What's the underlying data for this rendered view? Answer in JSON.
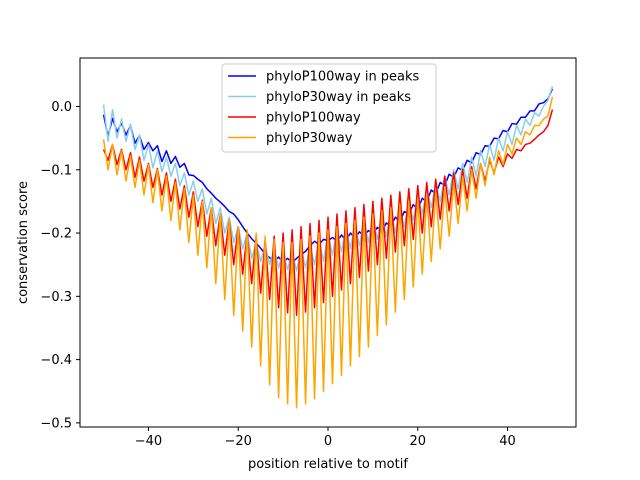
{
  "chart_data": {
    "type": "line",
    "title": "",
    "xlabel": "position relative to motif",
    "ylabel": "conservation score",
    "xlim": [
      -55.25,
      55.25
    ],
    "ylim": [
      -0.5065,
      0.0766
    ],
    "xticks": [
      -40,
      -20,
      0,
      20,
      40
    ],
    "yticks": [
      0.0,
      -0.1,
      -0.2,
      -0.3,
      -0.4,
      -0.5
    ],
    "xtick_labels": [
      "−40",
      "−20",
      "0",
      "20",
      "40"
    ],
    "ytick_labels": [
      "0.0",
      "−0.1",
      "−0.2",
      "−0.3",
      "−0.4",
      "−0.5"
    ],
    "grid": false,
    "legend_position": "top-center",
    "x_range": [
      -50,
      50
    ],
    "series": [
      {
        "name": "phyloP100way in peaks",
        "color": "#0000ff",
        "values": [
          -0.013,
          -0.047,
          -0.019,
          -0.04,
          -0.026,
          -0.045,
          -0.03,
          -0.058,
          -0.046,
          -0.068,
          -0.057,
          -0.07,
          -0.062,
          -0.087,
          -0.07,
          -0.09,
          -0.079,
          -0.096,
          -0.09,
          -0.108,
          -0.109,
          -0.115,
          -0.12,
          -0.13,
          -0.137,
          -0.145,
          -0.151,
          -0.158,
          -0.166,
          -0.17,
          -0.179,
          -0.19,
          -0.2,
          -0.209,
          -0.216,
          -0.224,
          -0.233,
          -0.239,
          -0.245,
          -0.238,
          -0.246,
          -0.24,
          -0.247,
          -0.24,
          -0.234,
          -0.229,
          -0.22,
          -0.213,
          -0.218,
          -0.21,
          -0.212,
          -0.207,
          -0.213,
          -0.203,
          -0.212,
          -0.2,
          -0.208,
          -0.198,
          -0.205,
          -0.196,
          -0.202,
          -0.191,
          -0.198,
          -0.184,
          -0.189,
          -0.175,
          -0.182,
          -0.166,
          -0.17,
          -0.155,
          -0.163,
          -0.145,
          -0.151,
          -0.132,
          -0.138,
          -0.12,
          -0.125,
          -0.107,
          -0.112,
          -0.097,
          -0.101,
          -0.085,
          -0.089,
          -0.073,
          -0.076,
          -0.062,
          -0.063,
          -0.05,
          -0.051,
          -0.038,
          -0.04,
          -0.027,
          -0.028,
          -0.017,
          -0.017,
          -0.007,
          -0.007,
          0.004,
          0.006,
          0.012,
          0.028
        ]
      },
      {
        "name": "phyloP30way in peaks",
        "color": "#87ceeb",
        "values": [
          0.003,
          -0.055,
          -0.005,
          -0.05,
          -0.02,
          -0.055,
          -0.028,
          -0.068,
          -0.045,
          -0.085,
          -0.06,
          -0.097,
          -0.07,
          -0.103,
          -0.08,
          -0.11,
          -0.09,
          -0.125,
          -0.105,
          -0.14,
          -0.118,
          -0.15,
          -0.13,
          -0.17,
          -0.145,
          -0.185,
          -0.16,
          -0.2,
          -0.175,
          -0.215,
          -0.19,
          -0.225,
          -0.2,
          -0.24,
          -0.215,
          -0.245,
          -0.22,
          -0.25,
          -0.225,
          -0.255,
          -0.228,
          -0.258,
          -0.23,
          -0.26,
          -0.225,
          -0.255,
          -0.22,
          -0.25,
          -0.21,
          -0.245,
          -0.2,
          -0.235,
          -0.195,
          -0.23,
          -0.19,
          -0.225,
          -0.185,
          -0.22,
          -0.18,
          -0.215,
          -0.175,
          -0.21,
          -0.17,
          -0.205,
          -0.165,
          -0.2,
          -0.16,
          -0.19,
          -0.15,
          -0.18,
          -0.14,
          -0.17,
          -0.13,
          -0.16,
          -0.12,
          -0.15,
          -0.11,
          -0.14,
          -0.1,
          -0.13,
          -0.09,
          -0.12,
          -0.08,
          -0.11,
          -0.07,
          -0.095,
          -0.06,
          -0.085,
          -0.05,
          -0.07,
          -0.04,
          -0.06,
          -0.03,
          -0.045,
          -0.02,
          -0.03,
          -0.01,
          -0.015,
          0.0,
          0.01,
          0.032
        ]
      },
      {
        "name": "phyloP100way",
        "color": "#ff0000",
        "values": [
          -0.068,
          -0.085,
          -0.06,
          -0.092,
          -0.068,
          -0.1,
          -0.073,
          -0.112,
          -0.08,
          -0.118,
          -0.09,
          -0.128,
          -0.098,
          -0.14,
          -0.105,
          -0.15,
          -0.115,
          -0.162,
          -0.125,
          -0.175,
          -0.135,
          -0.19,
          -0.148,
          -0.205,
          -0.16,
          -0.22,
          -0.17,
          -0.235,
          -0.18,
          -0.25,
          -0.19,
          -0.265,
          -0.2,
          -0.28,
          -0.205,
          -0.295,
          -0.21,
          -0.305,
          -0.205,
          -0.318,
          -0.2,
          -0.326,
          -0.195,
          -0.33,
          -0.19,
          -0.325,
          -0.185,
          -0.318,
          -0.18,
          -0.31,
          -0.175,
          -0.3,
          -0.17,
          -0.29,
          -0.165,
          -0.28,
          -0.16,
          -0.27,
          -0.155,
          -0.26,
          -0.15,
          -0.25,
          -0.145,
          -0.24,
          -0.14,
          -0.23,
          -0.135,
          -0.22,
          -0.13,
          -0.21,
          -0.125,
          -0.2,
          -0.12,
          -0.19,
          -0.115,
          -0.178,
          -0.11,
          -0.165,
          -0.105,
          -0.155,
          -0.1,
          -0.145,
          -0.095,
          -0.13,
          -0.09,
          -0.118,
          -0.085,
          -0.105,
          -0.08,
          -0.095,
          -0.075,
          -0.082,
          -0.068,
          -0.07,
          -0.06,
          -0.058,
          -0.052,
          -0.045,
          -0.04,
          -0.03,
          -0.005
        ]
      },
      {
        "name": "phyloP30way",
        "color": "#ffa500",
        "values": [
          -0.052,
          -0.1,
          -0.06,
          -0.108,
          -0.07,
          -0.118,
          -0.078,
          -0.128,
          -0.085,
          -0.14,
          -0.092,
          -0.152,
          -0.1,
          -0.165,
          -0.11,
          -0.18,
          -0.12,
          -0.195,
          -0.13,
          -0.215,
          -0.14,
          -0.235,
          -0.15,
          -0.255,
          -0.16,
          -0.28,
          -0.17,
          -0.305,
          -0.18,
          -0.33,
          -0.19,
          -0.355,
          -0.195,
          -0.38,
          -0.2,
          -0.41,
          -0.205,
          -0.44,
          -0.21,
          -0.46,
          -0.215,
          -0.47,
          -0.215,
          -0.476,
          -0.21,
          -0.47,
          -0.205,
          -0.462,
          -0.2,
          -0.45,
          -0.195,
          -0.438,
          -0.19,
          -0.425,
          -0.185,
          -0.41,
          -0.18,
          -0.395,
          -0.175,
          -0.38,
          -0.17,
          -0.362,
          -0.165,
          -0.345,
          -0.16,
          -0.325,
          -0.155,
          -0.305,
          -0.15,
          -0.285,
          -0.145,
          -0.265,
          -0.14,
          -0.245,
          -0.135,
          -0.225,
          -0.13,
          -0.205,
          -0.12,
          -0.185,
          -0.11,
          -0.165,
          -0.1,
          -0.145,
          -0.09,
          -0.125,
          -0.08,
          -0.108,
          -0.07,
          -0.092,
          -0.06,
          -0.075,
          -0.05,
          -0.06,
          -0.04,
          -0.045,
          -0.03,
          -0.03,
          -0.02,
          -0.015,
          0.015
        ]
      }
    ]
  }
}
